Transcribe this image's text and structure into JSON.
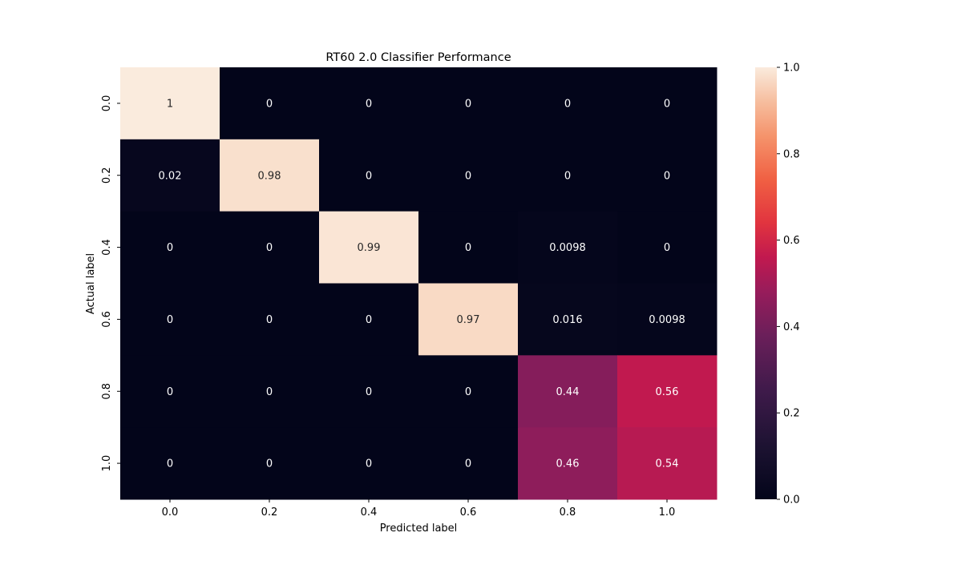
{
  "chart_data": {
    "type": "heatmap",
    "title": "RT60 2.0 Classifier Performance",
    "xlabel": "Predicted label",
    "ylabel": "Actual label",
    "x_categories": [
      "0.0",
      "0.2",
      "0.4",
      "0.6",
      "0.8",
      "1.0"
    ],
    "y_categories": [
      "0.0",
      "0.2",
      "0.4",
      "0.6",
      "0.8",
      "1.0"
    ],
    "values": [
      [
        1,
        0,
        0,
        0,
        0,
        0
      ],
      [
        0.02,
        0.98,
        0,
        0,
        0,
        0
      ],
      [
        0,
        0,
        0.99,
        0,
        0.0098,
        0
      ],
      [
        0,
        0,
        0,
        0.97,
        0.016,
        0.0098
      ],
      [
        0,
        0,
        0,
        0,
        0.44,
        0.56
      ],
      [
        0,
        0,
        0,
        0,
        0.46,
        0.54
      ]
    ],
    "cell_labels": [
      [
        "1",
        "0",
        "0",
        "0",
        "0",
        "0"
      ],
      [
        "0.02",
        "0.98",
        "0",
        "0",
        "0",
        "0"
      ],
      [
        "0",
        "0",
        "0.99",
        "0",
        "0.0098",
        "0"
      ],
      [
        "0",
        "0",
        "0",
        "0.97",
        "0.016",
        "0.0098"
      ],
      [
        "0",
        "0",
        "0",
        "0",
        "0.44",
        "0.56"
      ],
      [
        "0",
        "0",
        "0",
        "0",
        "0.46",
        "0.54"
      ]
    ],
    "colorbar": {
      "range": [
        0,
        1
      ],
      "ticks": [
        "0.0",
        "0.2",
        "0.4",
        "0.6",
        "0.8",
        "1.0"
      ],
      "colormap": "rocket"
    }
  }
}
